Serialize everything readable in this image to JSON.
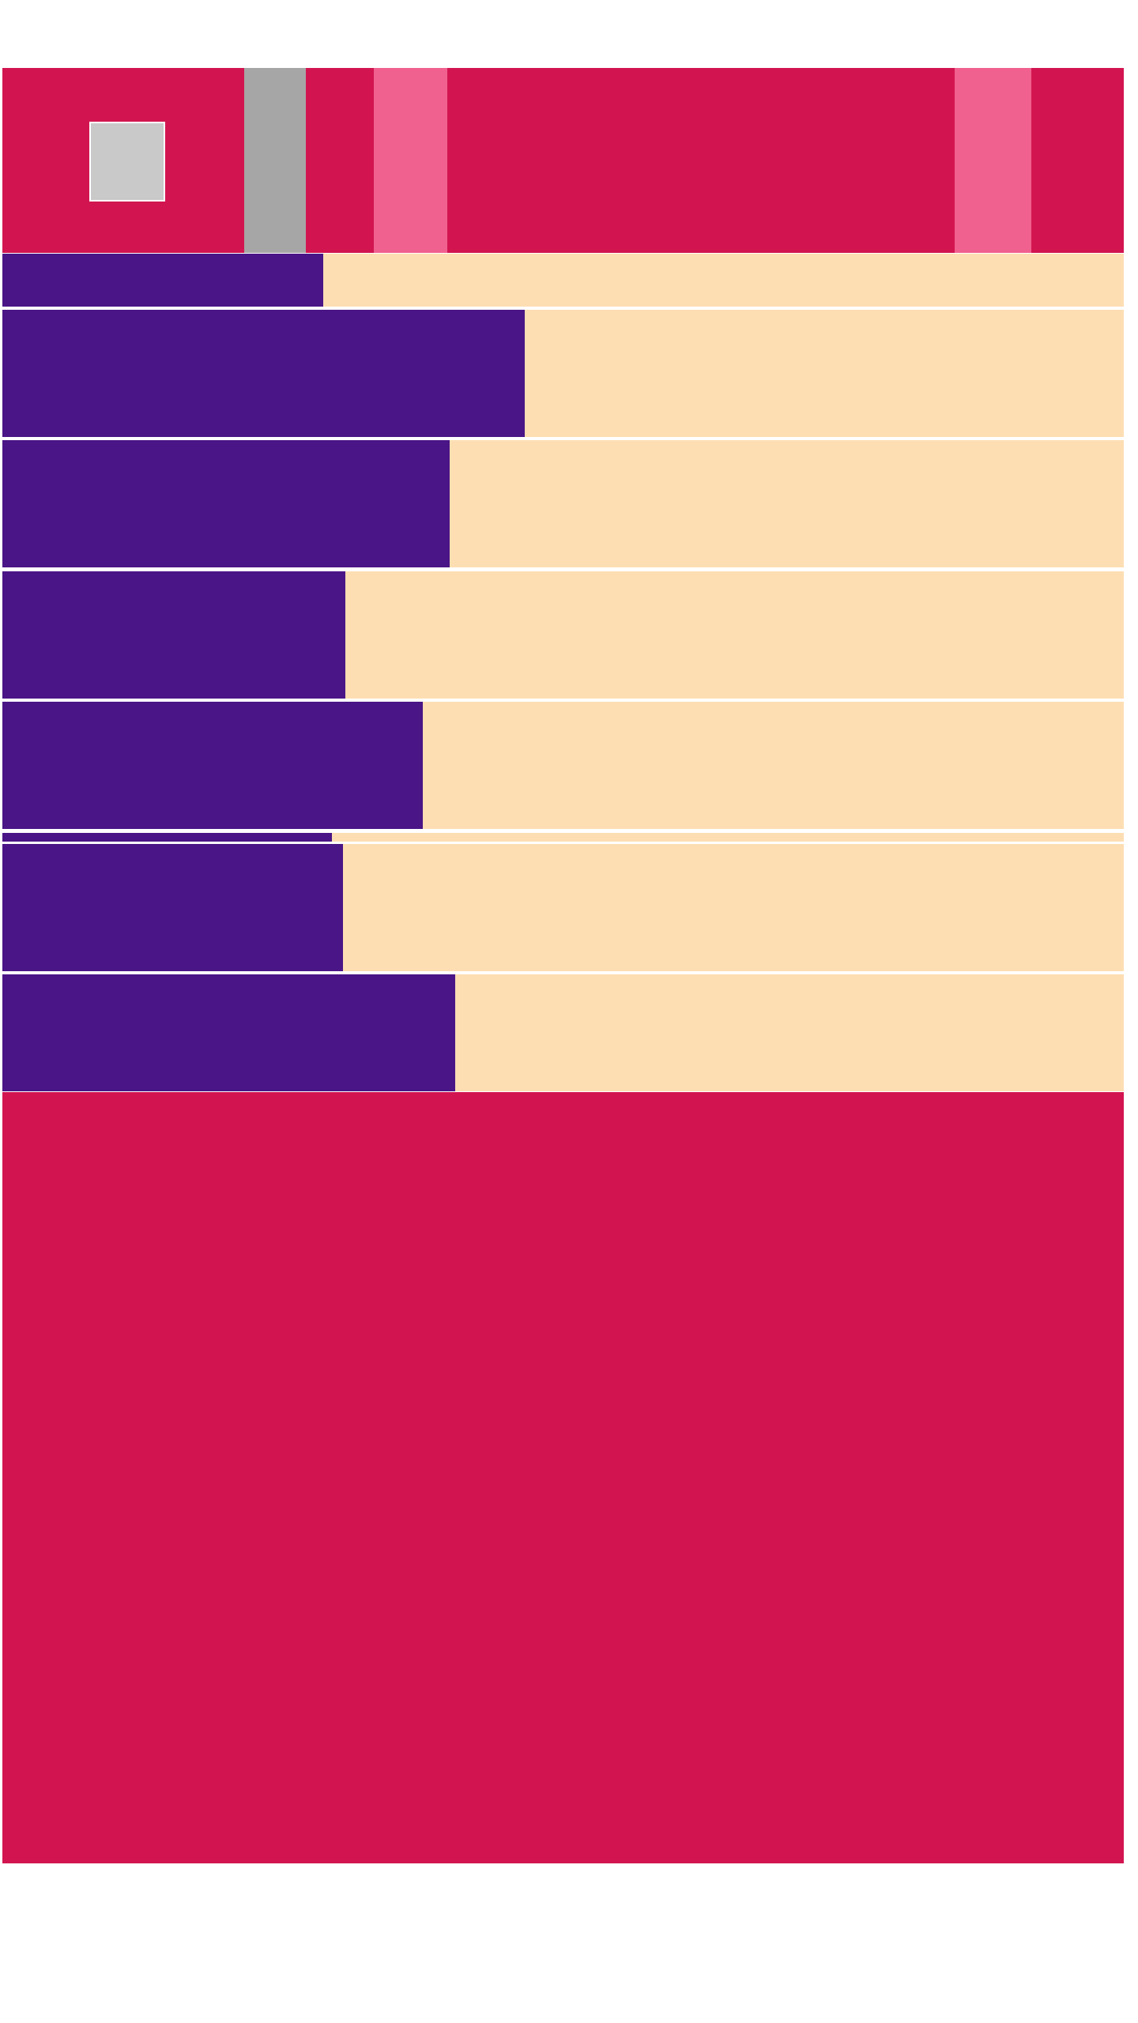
{
  "colors": {
    "magenta": "#D21550",
    "pink": "#F06190",
    "gray": "#A6A6A6",
    "lightgray": "#C9C9C9",
    "purple": "#4A1586",
    "peach": "#FDDEB3",
    "white": "#FFFFFF"
  },
  "rows": [
    {
      "fill": 0.286
    },
    {
      "fill": 0.466
    },
    {
      "fill": 0.399
    },
    {
      "fill": 0.306
    },
    {
      "fill": 0.375
    },
    {
      "fill": 0.294
    },
    {
      "fill": 0.304
    },
    {
      "fill": 0.404
    }
  ]
}
